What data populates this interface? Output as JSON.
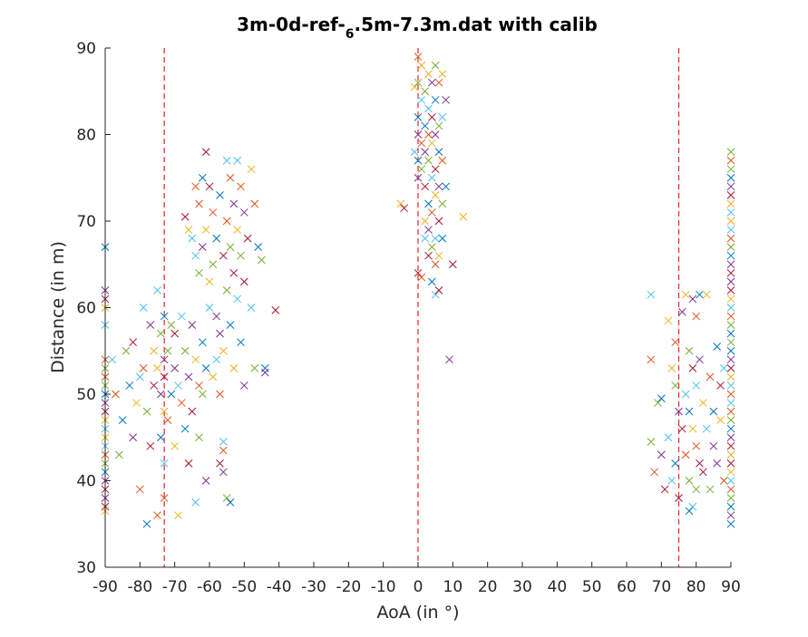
{
  "chart_data": {
    "type": "scatter",
    "title_parts": {
      "before": "3m-0d-ref-",
      "subscript": "6",
      "after": ".5m-7.3m.dat with calib"
    },
    "xlabel": "AoA (in °)",
    "ylabel": "Distance (in m)",
    "xlim": [
      -90,
      90
    ],
    "ylim": [
      30,
      90
    ],
    "xticks": [
      "-90",
      "-80",
      "-70",
      "-60",
      "-50",
      "-40",
      "-30",
      "-20",
      "-10",
      "0",
      "10",
      "20",
      "30",
      "40",
      "50",
      "60",
      "70",
      "80",
      "90"
    ],
    "yticks": [
      "30",
      "40",
      "50",
      "60",
      "70",
      "80",
      "90"
    ],
    "grid": false,
    "marker": "x",
    "reference_lines": [
      -73,
      0,
      75
    ],
    "reference_line_color": "#e8222a",
    "palette": [
      "#0072bd",
      "#d95319",
      "#edb120",
      "#7e2f8e",
      "#77ac30",
      "#4dbeee",
      "#a2142f"
    ],
    "points": [
      [
        -90,
        67.0
      ],
      [
        -90,
        62
      ],
      [
        -90,
        61
      ],
      [
        -90,
        60
      ],
      [
        -90,
        58
      ],
      [
        -90,
        54
      ],
      [
        -90,
        53
      ],
      [
        -90,
        52
      ],
      [
        -90,
        51
      ],
      [
        -90,
        50
      ],
      [
        -90,
        49
      ],
      [
        -90,
        48
      ],
      [
        -90,
        47
      ],
      [
        -90,
        46
      ],
      [
        -90,
        45
      ],
      [
        -90,
        44
      ],
      [
        -90,
        43
      ],
      [
        -90,
        42
      ],
      [
        -90,
        41
      ],
      [
        -90,
        40
      ],
      [
        -90,
        39
      ],
      [
        -90,
        38
      ],
      [
        -90,
        37
      ],
      [
        -90,
        36.5
      ],
      [
        -88,
        54
      ],
      [
        -87,
        50
      ],
      [
        -86,
        43
      ],
      [
        -85,
        47
      ],
      [
        -84,
        55
      ],
      [
        -83,
        51
      ],
      [
        -82,
        45
      ],
      [
        -82,
        56
      ],
      [
        -81,
        49
      ],
      [
        -80,
        52
      ],
      [
        -80,
        39
      ],
      [
        -79,
        60
      ],
      [
        -79,
        53
      ],
      [
        -78,
        48
      ],
      [
        -78,
        35
      ],
      [
        -77,
        58
      ],
      [
        -77,
        44
      ],
      [
        -76,
        55
      ],
      [
        -76,
        51
      ],
      [
        -75,
        53
      ],
      [
        -75,
        62
      ],
      [
        -75,
        36
      ],
      [
        -74,
        57
      ],
      [
        -74,
        45
      ],
      [
        -74,
        50
      ],
      [
        -73,
        59
      ],
      [
        -73,
        54
      ],
      [
        -73,
        52
      ],
      [
        -73,
        48
      ],
      [
        -73,
        42
      ],
      [
        -73,
        38
      ],
      [
        -72,
        55
      ],
      [
        -72,
        47
      ],
      [
        -71,
        58
      ],
      [
        -71,
        50
      ],
      [
        -70,
        53
      ],
      [
        -70,
        57
      ],
      [
        -70,
        44
      ],
      [
        -69,
        51
      ],
      [
        -69,
        36
      ],
      [
        -68,
        59
      ],
      [
        -68,
        49
      ],
      [
        -67,
        55
      ],
      [
        -67,
        46
      ],
      [
        -66,
        52
      ],
      [
        -66,
        42
      ],
      [
        -65,
        58
      ],
      [
        -65,
        48
      ],
      [
        -64,
        54
      ],
      [
        -64,
        37.5
      ],
      [
        -63,
        51
      ],
      [
        -63,
        45
      ],
      [
        -62,
        56
      ],
      [
        -62,
        50
      ],
      [
        -61,
        53
      ],
      [
        -61,
        40
      ],
      [
        -67,
        70.5
      ],
      [
        -66,
        69
      ],
      [
        -65,
        68
      ],
      [
        -64,
        74
      ],
      [
        -64,
        66
      ],
      [
        -63,
        72
      ],
      [
        -63,
        64
      ],
      [
        -62,
        75
      ],
      [
        -62,
        67
      ],
      [
        -61,
        78
      ],
      [
        -61,
        69
      ],
      [
        -60,
        74
      ],
      [
        -60,
        63
      ],
      [
        -60,
        60
      ],
      [
        -59,
        71
      ],
      [
        -59,
        65
      ],
      [
        -58,
        68
      ],
      [
        -58,
        59
      ],
      [
        -57,
        73
      ],
      [
        -57,
        57
      ],
      [
        -56,
        66
      ],
      [
        -56,
        55
      ],
      [
        -55,
        77
      ],
      [
        -55,
        70
      ],
      [
        -55,
        62
      ],
      [
        -54,
        75
      ],
      [
        -54,
        67
      ],
      [
        -54,
        58
      ],
      [
        -53,
        72
      ],
      [
        -53,
        64
      ],
      [
        -53,
        53
      ],
      [
        -52,
        77
      ],
      [
        -52,
        69
      ],
      [
        -52,
        61
      ],
      [
        -51,
        74
      ],
      [
        -51,
        66
      ],
      [
        -51,
        56
      ],
      [
        -50,
        71
      ],
      [
        -50,
        63
      ],
      [
        -50,
        51
      ],
      [
        -49,
        68
      ],
      [
        -48,
        76
      ],
      [
        -48,
        60
      ],
      [
        -47,
        72
      ],
      [
        -47,
        53
      ],
      [
        -46,
        67
      ],
      [
        -45,
        65.5
      ],
      [
        -44,
        53
      ],
      [
        -44,
        52.5
      ],
      [
        -41,
        59.7
      ],
      [
        -59,
        52
      ],
      [
        -58,
        54
      ],
      [
        -57,
        50
      ],
      [
        -56,
        44.5
      ],
      [
        -56,
        43.5
      ],
      [
        -55,
        38
      ],
      [
        -54,
        37.5
      ],
      [
        -56,
        41
      ],
      [
        -57,
        42
      ],
      [
        -5,
        72
      ],
      [
        -4,
        71.5
      ],
      [
        -1,
        85.5
      ],
      [
        -1,
        78
      ],
      [
        0,
        89
      ],
      [
        0,
        86
      ],
      [
        0,
        82
      ],
      [
        0,
        80
      ],
      [
        0,
        77
      ],
      [
        0,
        75
      ],
      [
        0,
        64
      ],
      [
        1,
        88
      ],
      [
        1,
        84
      ],
      [
        1,
        79
      ],
      [
        1,
        76
      ],
      [
        1,
        63.5
      ],
      [
        2,
        85
      ],
      [
        2,
        81
      ],
      [
        2,
        78
      ],
      [
        2,
        74
      ],
      [
        2,
        70
      ],
      [
        2,
        68
      ],
      [
        3,
        87
      ],
      [
        3,
        83
      ],
      [
        3,
        80
      ],
      [
        3,
        77
      ],
      [
        3,
        72
      ],
      [
        3,
        69
      ],
      [
        3,
        66
      ],
      [
        4,
        86
      ],
      [
        4,
        82
      ],
      [
        4,
        79
      ],
      [
        4,
        75
      ],
      [
        4,
        71
      ],
      [
        4,
        67
      ],
      [
        4,
        63
      ],
      [
        5,
        88
      ],
      [
        5,
        84
      ],
      [
        5,
        80
      ],
      [
        5,
        76
      ],
      [
        5,
        73
      ],
      [
        5,
        68
      ],
      [
        5,
        65
      ],
      [
        5,
        61.5
      ],
      [
        6,
        86
      ],
      [
        6,
        81
      ],
      [
        6,
        78
      ],
      [
        6,
        74
      ],
      [
        6,
        70
      ],
      [
        6,
        66
      ],
      [
        6,
        62
      ],
      [
        7,
        87
      ],
      [
        7,
        82
      ],
      [
        7,
        77
      ],
      [
        7,
        72
      ],
      [
        7,
        68
      ],
      [
        8,
        84
      ],
      [
        8,
        74
      ],
      [
        9,
        54
      ],
      [
        10,
        65
      ],
      [
        13,
        70.5
      ],
      [
        67,
        61.5
      ],
      [
        67,
        54
      ],
      [
        67,
        44.5
      ],
      [
        68,
        41
      ],
      [
        69,
        49
      ],
      [
        70,
        49.5
      ],
      [
        70,
        43
      ],
      [
        71,
        39
      ],
      [
        72,
        58.5
      ],
      [
        72,
        45
      ],
      [
        73,
        53
      ],
      [
        73,
        40
      ],
      [
        74,
        56
      ],
      [
        74,
        51
      ],
      [
        74,
        42
      ],
      [
        75,
        48
      ],
      [
        75,
        38
      ],
      [
        76,
        59.5
      ],
      [
        76,
        46
      ],
      [
        77,
        61.5
      ],
      [
        77,
        50
      ],
      [
        77,
        43
      ],
      [
        78,
        55
      ],
      [
        78,
        48
      ],
      [
        78,
        40
      ],
      [
        78,
        36.5
      ],
      [
        79,
        61
      ],
      [
        79,
        53
      ],
      [
        79,
        46
      ],
      [
        79,
        37
      ],
      [
        80,
        59
      ],
      [
        80,
        51
      ],
      [
        80,
        44
      ],
      [
        80,
        39
      ],
      [
        81,
        61.5
      ],
      [
        81,
        54
      ],
      [
        81,
        42
      ],
      [
        82,
        49
      ],
      [
        82,
        41
      ],
      [
        83,
        61.5
      ],
      [
        83,
        46
      ],
      [
        84,
        52
      ],
      [
        84,
        39
      ],
      [
        85,
        48
      ],
      [
        85,
        44
      ],
      [
        86,
        55.5
      ],
      [
        86,
        42
      ],
      [
        87,
        51
      ],
      [
        87,
        47
      ],
      [
        88,
        53
      ],
      [
        88,
        40
      ],
      [
        90,
        78
      ],
      [
        90,
        77
      ],
      [
        90,
        76
      ],
      [
        90,
        75
      ],
      [
        90,
        74
      ],
      [
        90,
        73
      ],
      [
        90,
        72
      ],
      [
        90,
        71
      ],
      [
        90,
        70
      ],
      [
        90,
        69
      ],
      [
        90,
        68
      ],
      [
        90,
        67
      ],
      [
        90,
        66
      ],
      [
        90,
        65
      ],
      [
        90,
        64
      ],
      [
        90,
        63
      ],
      [
        90,
        62
      ],
      [
        90,
        61
      ],
      [
        90,
        60
      ],
      [
        90,
        59
      ],
      [
        90,
        58
      ],
      [
        90,
        57
      ],
      [
        90,
        56
      ],
      [
        90,
        55
      ],
      [
        90,
        54
      ],
      [
        90,
        53
      ],
      [
        90,
        52
      ],
      [
        90,
        51
      ],
      [
        90,
        50
      ],
      [
        90,
        49
      ],
      [
        90,
        48
      ],
      [
        90,
        47
      ],
      [
        90,
        46
      ],
      [
        90,
        45
      ],
      [
        90,
        44
      ],
      [
        90,
        43
      ],
      [
        90,
        42
      ],
      [
        90,
        41
      ],
      [
        90,
        40
      ],
      [
        90,
        39
      ],
      [
        90,
        38
      ],
      [
        90,
        37
      ],
      [
        90,
        36
      ],
      [
        90,
        35
      ]
    ]
  }
}
